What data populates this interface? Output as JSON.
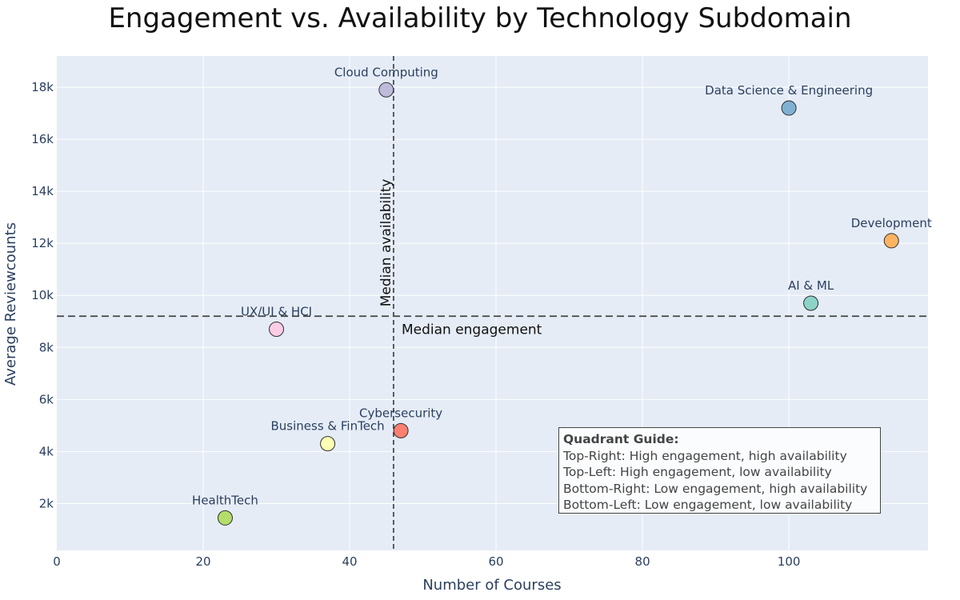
{
  "chart_data": {
    "type": "scatter",
    "title": "Engagement vs. Availability by Technology Subdomain",
    "xlabel": "Number of Courses",
    "ylabel": "Average Reviewcounts",
    "xlim": [
      0,
      119
    ],
    "ylim": [
      200,
      19200
    ],
    "x_ticks": [
      0,
      20,
      40,
      60,
      80,
      100
    ],
    "y_ticks": [
      2000,
      4000,
      6000,
      8000,
      10000,
      12000,
      14000,
      16000,
      18000
    ],
    "y_tick_labels": [
      "2k",
      "4k",
      "6k",
      "8k",
      "10k",
      "12k",
      "14k",
      "16k",
      "18k"
    ],
    "grid": true,
    "points": [
      {
        "label": "Cloud Computing",
        "x": 45,
        "y": 17900,
        "color": "#bebada"
      },
      {
        "label": "Data Science & Engineering",
        "x": 100,
        "y": 17200,
        "color": "#80b1d3"
      },
      {
        "label": "Development",
        "x": 114,
        "y": 12100,
        "color": "#fdb462"
      },
      {
        "label": "AI & ML",
        "x": 103,
        "y": 9700,
        "color": "#8dd3c7"
      },
      {
        "label": "UX/UI & HCI",
        "x": 30,
        "y": 8700,
        "color": "#fccde5"
      },
      {
        "label": "Cybersecurity",
        "x": 47,
        "y": 4800,
        "color": "#fb8072"
      },
      {
        "label": "Business & FinTech",
        "x": 37,
        "y": 4300,
        "color": "#ffffb3"
      },
      {
        "label": "HealthTech",
        "x": 23,
        "y": 1450,
        "color": "#b3de69"
      }
    ],
    "reference_lines": {
      "median_availability": {
        "x": 46,
        "label": "Median availability"
      },
      "median_engagement": {
        "y": 9200,
        "label": "Median engagement"
      }
    }
  },
  "guide": {
    "title": "Quadrant Guide:",
    "lines": [
      "Top-Right: High engagement, high availability",
      "Top-Left: High engagement, low availability",
      "Bottom-Right: Low engagement, high availability",
      "Bottom-Left: Low engagement, low availability"
    ]
  },
  "colors": {
    "plot_background": "#e5ecf6",
    "marker_outline": "#2f2f2f",
    "reference_line": "#444444"
  }
}
